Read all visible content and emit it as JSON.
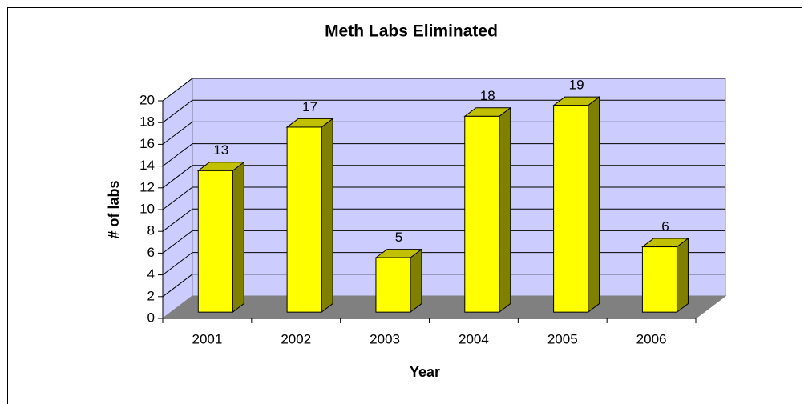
{
  "chart_data": {
    "type": "bar3d",
    "title": "Meth Labs Eliminated",
    "xlabel": "Year",
    "ylabel": "# of labs",
    "categories": [
      "2001",
      "2002",
      "2003",
      "2004",
      "2005",
      "2006"
    ],
    "values": [
      13,
      17,
      5,
      18,
      19,
      6
    ],
    "color": "#ffff00",
    "ylim": [
      0,
      20
    ],
    "yticks": [
      0,
      2,
      4,
      6,
      8,
      10,
      12,
      14,
      16,
      18,
      20
    ],
    "grid": true
  }
}
